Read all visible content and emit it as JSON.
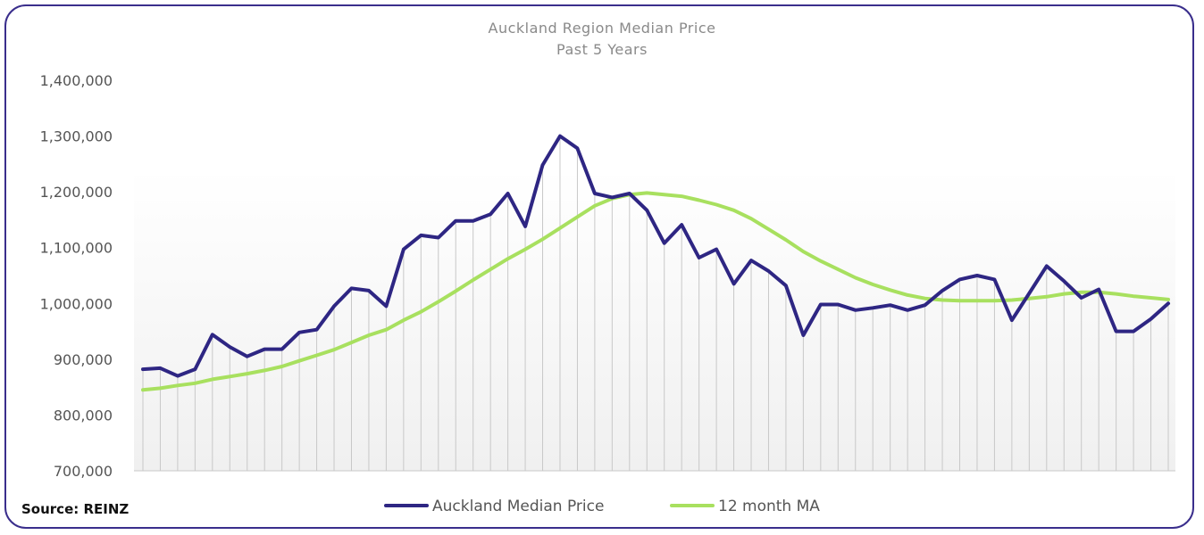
{
  "source": "Source: REINZ",
  "chart_data": {
    "type": "line",
    "title": "Auckland Region Median Price",
    "subtitle": "Past 5 Years",
    "ylim": [
      700000,
      1400000
    ],
    "yticks": [
      700000,
      800000,
      900000,
      1000000,
      1100000,
      1200000,
      1300000,
      1400000
    ],
    "ytick_labels": [
      "700,000",
      "800,000",
      "900,000",
      "1,000,000",
      "1,100,000",
      "1,200,000",
      "1,300,000",
      "1,400,000"
    ],
    "grid": "vertical",
    "legend": "bottom-center",
    "series": [
      {
        "name": "Auckland Median Price",
        "color": "#2e2683",
        "values": [
          882000,
          884000,
          870000,
          882000,
          944000,
          922000,
          905000,
          918000,
          918000,
          948000,
          953000,
          995000,
          1027000,
          1023000,
          995000,
          1097000,
          1122000,
          1118000,
          1148000,
          1148000,
          1160000,
          1197000,
          1138000,
          1248000,
          1300000,
          1278000,
          1197000,
          1190000,
          1197000,
          1167000,
          1108000,
          1141000,
          1082000,
          1097000,
          1035000,
          1077000,
          1058000,
          1032000,
          943000,
          998000,
          998000,
          988000,
          992000,
          997000,
          988000,
          997000,
          1023000,
          1043000,
          1050000,
          1043000,
          970000,
          1018000,
          1067000,
          1040000,
          1010000,
          1025000,
          950000,
          950000,
          972000,
          1000000
        ]
      },
      {
        "name": "12 month MA",
        "color": "#a8e05f",
        "values": [
          845000,
          848000,
          853000,
          857000,
          864000,
          869000,
          874000,
          880000,
          887000,
          897000,
          907000,
          917000,
          930000,
          943000,
          953000,
          970000,
          985000,
          1003000,
          1022000,
          1042000,
          1061000,
          1080000,
          1097000,
          1115000,
          1135000,
          1155000,
          1175000,
          1188000,
          1195000,
          1198000,
          1195000,
          1192000,
          1185000,
          1177000,
          1167000,
          1152000,
          1133000,
          1114000,
          1093000,
          1076000,
          1061000,
          1046000,
          1034000,
          1024000,
          1015000,
          1009000,
          1006000,
          1005000,
          1005000,
          1005000,
          1006000,
          1009000,
          1012000,
          1017000,
          1020000,
          1020000,
          1017000,
          1013000,
          1010000,
          1007000
        ]
      }
    ]
  }
}
